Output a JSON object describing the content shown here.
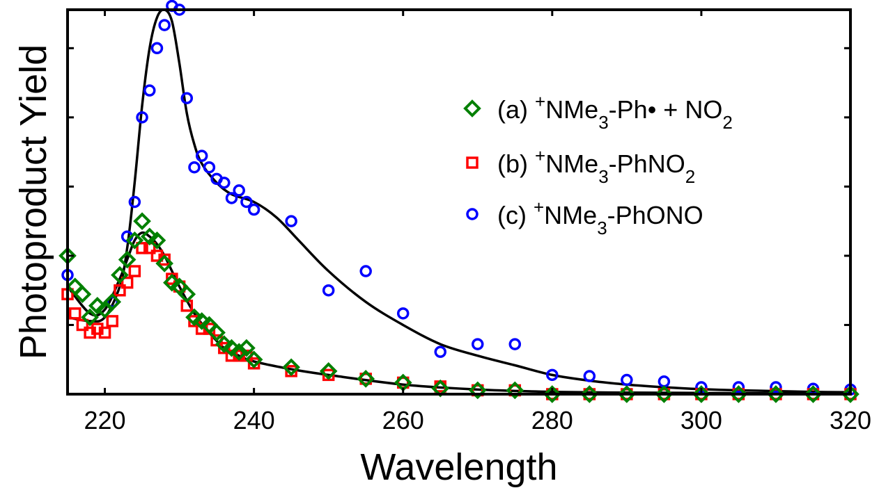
{
  "chart_data": {
    "type": "scatter",
    "xlabel": "Wavelength",
    "ylabel": "Photoproduct Yield",
    "xlim": [
      215,
      320
    ],
    "ylim": [
      0,
      1.0
    ],
    "xticks": [
      220,
      240,
      260,
      280,
      300,
      320
    ],
    "yticks": [
      0.18,
      0.36,
      0.54,
      0.72,
      0.9
    ],
    "grid": false,
    "legend_position": "top-right",
    "legend": [
      {
        "id": "a",
        "label": "(a) +NMe3-Ph• + NO2",
        "prefix": "(a) ",
        "parts": [
          [
            "sup",
            "+"
          ],
          [
            "t",
            "NMe"
          ],
          [
            "sub",
            "3"
          ],
          [
            "t",
            "-Ph• + NO"
          ],
          [
            "sub",
            "2"
          ]
        ]
      },
      {
        "id": "b",
        "label": "(b) +NMe3-PhNO2",
        "prefix": "(b) ",
        "parts": [
          [
            "sup",
            "+"
          ],
          [
            "t",
            "NMe"
          ],
          [
            "sub",
            "3"
          ],
          [
            "t",
            "-PhNO"
          ],
          [
            "sub",
            "2"
          ]
        ]
      },
      {
        "id": "c",
        "label": "(c) +NMe3-PhONO",
        "prefix": "(c) ",
        "parts": [
          [
            "sup",
            "+"
          ],
          [
            "t",
            "NMe"
          ],
          [
            "sub",
            "3"
          ],
          [
            "t",
            "-PhONO"
          ]
        ]
      }
    ],
    "series": [
      {
        "id": "c",
        "marker": "circle",
        "color": "#0000ff",
        "x": [
          215,
          221,
          223,
          224,
          225,
          226,
          227,
          228,
          229,
          230,
          231,
          232,
          233,
          234,
          235,
          236,
          237,
          238,
          239,
          240,
          245,
          250,
          255,
          260,
          265,
          270,
          275,
          280,
          285,
          290,
          295,
          300,
          305,
          310,
          315,
          320
        ],
        "y": [
          0.31,
          0.24,
          0.41,
          0.5,
          0.72,
          0.79,
          0.9,
          0.96,
          1.01,
          1.0,
          0.77,
          0.59,
          0.62,
          0.59,
          0.56,
          0.55,
          0.51,
          0.53,
          0.5,
          0.48,
          0.45,
          0.27,
          0.32,
          0.21,
          0.11,
          0.13,
          0.13,
          0.05,
          0.047,
          0.037,
          0.033,
          0.018,
          0.018,
          0.018,
          0.014,
          0.012
        ]
      },
      {
        "id": "b",
        "marker": "square",
        "color": "#ff0000",
        "x": [
          215,
          216,
          217,
          218,
          219,
          220,
          221,
          222,
          223,
          224,
          225,
          226,
          227,
          228,
          229,
          230,
          231,
          232,
          233,
          234,
          235,
          236,
          237,
          238,
          239,
          240,
          245,
          250,
          255,
          260,
          265,
          270,
          275,
          280,
          285,
          290,
          295,
          300,
          305,
          310,
          315,
          320
        ],
        "y": [
          0.26,
          0.21,
          0.18,
          0.16,
          0.17,
          0.16,
          0.19,
          0.27,
          0.29,
          0.32,
          0.38,
          0.38,
          0.36,
          0.35,
          0.3,
          0.28,
          0.23,
          0.19,
          0.17,
          0.17,
          0.14,
          0.12,
          0.1,
          0.1,
          0.1,
          0.08,
          0.06,
          0.05,
          0.04,
          0.03,
          0.02,
          0.01,
          0.01,
          0.0,
          0.0,
          0.0,
          0.0,
          0.0,
          0.0,
          0.0,
          0.0,
          0.0
        ]
      },
      {
        "id": "a",
        "marker": "diamond",
        "color": "#008000",
        "x": [
          215,
          216,
          217,
          218,
          219,
          220,
          221,
          222,
          223,
          224,
          225,
          226,
          227,
          228,
          229,
          230,
          231,
          232,
          233,
          234,
          235,
          236,
          237,
          238,
          239,
          240,
          245,
          250,
          255,
          260,
          265,
          270,
          275,
          280,
          285,
          290,
          295,
          300,
          305,
          310,
          315,
          320
        ],
        "y": [
          0.36,
          0.28,
          0.26,
          0.2,
          0.23,
          0.22,
          0.24,
          0.31,
          0.35,
          0.4,
          0.45,
          0.41,
          0.4,
          0.34,
          0.29,
          0.28,
          0.26,
          0.2,
          0.19,
          0.18,
          0.16,
          0.13,
          0.12,
          0.11,
          0.12,
          0.09,
          0.07,
          0.06,
          0.04,
          0.03,
          0.015,
          0.01,
          0.01,
          0.0,
          0.0,
          0.0,
          0.0,
          0.0,
          0.0,
          0.0,
          0.0,
          0.0
        ]
      }
    ],
    "fit_curves": [
      {
        "for": "c",
        "color": "#000000",
        "x": [
          215,
          218,
          220,
          222,
          223,
          224,
          225,
          226,
          227,
          228,
          229,
          230,
          231,
          232,
          233,
          235,
          237,
          240,
          243,
          246,
          250,
          255,
          260,
          265,
          270,
          275,
          280,
          285,
          290,
          295,
          300,
          305,
          310,
          315,
          320
        ],
        "y": [
          0.2,
          0.19,
          0.2,
          0.28,
          0.38,
          0.55,
          0.75,
          0.9,
          0.98,
          1.0,
          0.97,
          0.86,
          0.73,
          0.65,
          0.6,
          0.55,
          0.52,
          0.5,
          0.46,
          0.4,
          0.32,
          0.24,
          0.18,
          0.13,
          0.1,
          0.075,
          0.05,
          0.035,
          0.025,
          0.018,
          0.013,
          0.01,
          0.008,
          0.006,
          0.005
        ]
      },
      {
        "for": "a",
        "color": "#000000",
        "x": [
          215,
          218,
          220,
          222,
          223,
          224,
          225,
          226,
          227,
          228,
          229,
          230,
          232,
          234,
          236,
          238,
          240,
          245,
          250,
          260,
          270,
          280,
          290,
          300,
          310,
          320
        ],
        "y": [
          0.28,
          0.21,
          0.22,
          0.3,
          0.35,
          0.4,
          0.42,
          0.41,
          0.39,
          0.36,
          0.32,
          0.28,
          0.21,
          0.16,
          0.12,
          0.1,
          0.085,
          0.065,
          0.05,
          0.025,
          0.012,
          0.006,
          0.004,
          0.003,
          0.002,
          0.001
        ]
      }
    ]
  }
}
